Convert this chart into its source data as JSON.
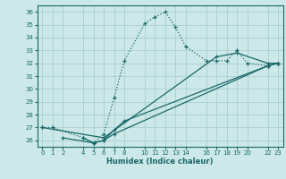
{
  "xlabel": "Humidex (Indice chaleur)",
  "bg_color": "#cce8e8",
  "grid_color": "#a8d0d0",
  "line_color": "#1a6868",
  "xlim": [
    -0.5,
    23.5
  ],
  "ylim": [
    25.5,
    36.5
  ],
  "xticks": [
    0,
    1,
    2,
    4,
    5,
    6,
    7,
    8,
    10,
    11,
    12,
    13,
    14,
    16,
    17,
    18,
    19,
    20,
    22,
    23
  ],
  "yticks": [
    26,
    27,
    28,
    29,
    30,
    31,
    32,
    33,
    34,
    35,
    36
  ],
  "lines": [
    {
      "x": [
        0,
        1,
        4,
        5,
        6,
        7,
        8,
        10,
        11,
        12,
        13,
        14,
        16,
        17,
        18,
        19,
        20,
        22,
        23
      ],
      "y": [
        27,
        27,
        26.2,
        25.8,
        26.5,
        29.3,
        32.2,
        35.1,
        35.6,
        36.0,
        34.8,
        33.3,
        32.2,
        32.2,
        32.2,
        33.0,
        32.0,
        31.8,
        32.0
      ],
      "style": "dotted"
    },
    {
      "x": [
        0,
        6,
        17,
        19,
        22,
        23
      ],
      "y": [
        27,
        26.2,
        32.5,
        32.8,
        32.0,
        32.0
      ],
      "style": "solid"
    },
    {
      "x": [
        2,
        5,
        6,
        7,
        22,
        23
      ],
      "y": [
        26.2,
        25.8,
        26.0,
        26.5,
        31.8,
        32.0
      ],
      "style": "solid"
    },
    {
      "x": [
        4,
        5,
        6,
        7,
        8,
        22,
        23
      ],
      "y": [
        26.2,
        25.8,
        26.0,
        26.8,
        27.5,
        31.8,
        32.0
      ],
      "style": "solid"
    }
  ]
}
